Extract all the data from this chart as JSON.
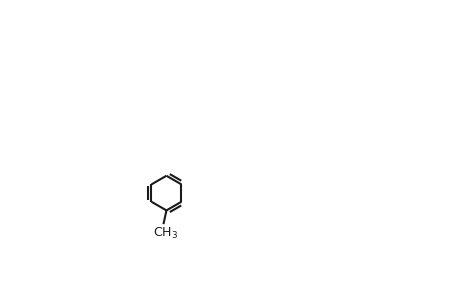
{
  "bg_color": "#ffffff",
  "line_color": "#1a1a1a",
  "line_width": 1.6,
  "font_size": 9.5,
  "fig_width": 4.6,
  "fig_height": 3.0,
  "dpi": 100
}
